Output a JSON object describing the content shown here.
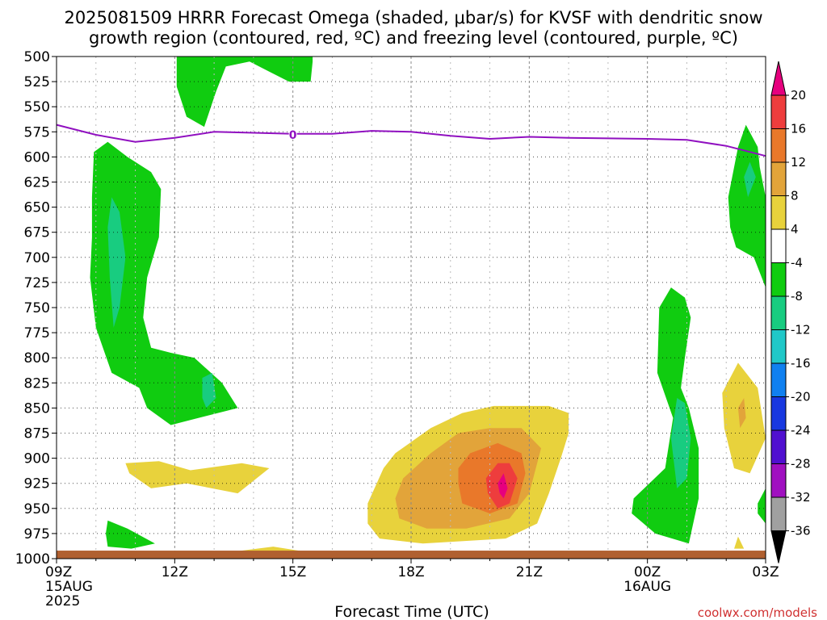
{
  "chart_data": {
    "type": "heatmap",
    "title_line1": "2025081509 HRRR Forecast Omega (shaded, μbar/s) for KVSF with dendritic snow",
    "title_line2": "growth region (contoured, red, ºC) and freezing level (contoured, purple, ºC)",
    "xlabel": "Forecast Time (UTC)",
    "credit": "coolwx.com/models",
    "x_range_hours": [
      0,
      18
    ],
    "y_range_hpa": [
      500,
      1000
    ],
    "y_ticks": [
      500,
      525,
      550,
      575,
      600,
      625,
      650,
      675,
      700,
      725,
      750,
      775,
      800,
      825,
      850,
      875,
      900,
      925,
      950,
      975,
      1000
    ],
    "x_ticks": [
      {
        "hour": 0,
        "label": "09Z",
        "date": "15AUG",
        "year": "2025"
      },
      {
        "hour": 3,
        "label": "12Z"
      },
      {
        "hour": 6,
        "label": "15Z"
      },
      {
        "hour": 9,
        "label": "18Z"
      },
      {
        "hour": 12,
        "label": "21Z"
      },
      {
        "hour": 15,
        "label": "00Z",
        "date": "16AUG"
      },
      {
        "hour": 18,
        "label": "03Z"
      }
    ],
    "grid": true,
    "freezing_level": {
      "label": "0",
      "points": [
        [
          0,
          568
        ],
        [
          1,
          578
        ],
        [
          2,
          585
        ],
        [
          3,
          581
        ],
        [
          4,
          575
        ],
        [
          6,
          577
        ],
        [
          7,
          577
        ],
        [
          8,
          574
        ],
        [
          9,
          575
        ],
        [
          10,
          579
        ],
        [
          11,
          582
        ],
        [
          12,
          580
        ],
        [
          13,
          581
        ],
        [
          15,
          582
        ],
        [
          16,
          583
        ],
        [
          17,
          589
        ],
        [
          18,
          599
        ]
      ]
    },
    "colorbar": {
      "labels": [
        "20",
        "16",
        "12",
        "8",
        "4",
        "-4",
        "-8",
        "-12",
        "-16",
        "-20",
        "-24",
        "-28",
        "-32",
        "-36"
      ],
      "colors": [
        "#e6007e",
        "#ee3d3d",
        "#e9782a",
        "#e2a43a",
        "#e8d23c",
        "#ffffff",
        "#10cc10",
        "#18cc80",
        "#20c8c8",
        "#1080f0",
        "#1838e0",
        "#5010d0",
        "#a010c0",
        "#a0a0a0",
        "#000000"
      ]
    },
    "shaded_regions": [
      {
        "name": "green-top-12z-15z",
        "value": -6,
        "points": [
          [
            3.05,
            500
          ],
          [
            3.05,
            530
          ],
          [
            3.3,
            560
          ],
          [
            3.75,
            570
          ],
          [
            4.05,
            535
          ],
          [
            4.3,
            510
          ],
          [
            4.9,
            505
          ],
          [
            5.4,
            515
          ],
          [
            5.9,
            525
          ],
          [
            6.45,
            525
          ],
          [
            6.5,
            505
          ],
          [
            6.5,
            500
          ]
        ]
      },
      {
        "name": "green-left-column",
        "value": -6,
        "points": [
          [
            0.95,
            595
          ],
          [
            1.3,
            585
          ],
          [
            1.8,
            600
          ],
          [
            2.4,
            615
          ],
          [
            2.65,
            632
          ],
          [
            2.6,
            680
          ],
          [
            2.3,
            720
          ],
          [
            2.2,
            760
          ],
          [
            2.4,
            790
          ],
          [
            2.9,
            795
          ],
          [
            3.5,
            800
          ],
          [
            4.2,
            825
          ],
          [
            4.6,
            850
          ],
          [
            3.6,
            860
          ],
          [
            2.9,
            867
          ],
          [
            2.3,
            850
          ],
          [
            2.1,
            830
          ],
          [
            1.4,
            815
          ],
          [
            1.0,
            770
          ],
          [
            0.85,
            720
          ],
          [
            0.9,
            680
          ],
          [
            0.9,
            640
          ]
        ]
      },
      {
        "name": "teal-left-column",
        "value": -10,
        "points": [
          [
            1.4,
            640
          ],
          [
            1.6,
            655
          ],
          [
            1.75,
            700
          ],
          [
            1.6,
            750
          ],
          [
            1.45,
            770
          ],
          [
            1.35,
            720
          ],
          [
            1.3,
            670
          ]
        ]
      },
      {
        "name": "teal-12z-850",
        "value": -10,
        "points": [
          [
            3.7,
            820
          ],
          [
            3.95,
            815
          ],
          [
            4.05,
            840
          ],
          [
            3.8,
            850
          ],
          [
            3.7,
            840
          ]
        ]
      },
      {
        "name": "green-left-bottom",
        "value": -6,
        "points": [
          [
            1.3,
            962
          ],
          [
            1.8,
            970
          ],
          [
            2.5,
            985
          ],
          [
            1.9,
            990
          ],
          [
            1.3,
            988
          ],
          [
            1.25,
            975
          ]
        ]
      },
      {
        "name": "green-right-top",
        "value": -6,
        "points": [
          [
            17.05,
            640
          ],
          [
            17.3,
            590
          ],
          [
            17.5,
            568
          ],
          [
            17.8,
            590
          ],
          [
            17.85,
            610
          ],
          [
            18,
            640
          ],
          [
            18,
            700
          ],
          [
            18,
            730
          ],
          [
            17.7,
            700
          ],
          [
            17.25,
            690
          ],
          [
            17.1,
            670
          ]
        ]
      },
      {
        "name": "teal-right-top",
        "value": -10,
        "points": [
          [
            17.45,
            620
          ],
          [
            17.6,
            605
          ],
          [
            17.75,
            620
          ],
          [
            17.55,
            640
          ]
        ]
      },
      {
        "name": "green-right-bottom",
        "value": -6,
        "points": [
          [
            14.65,
            940
          ],
          [
            15.05,
            925
          ],
          [
            15.45,
            910
          ],
          [
            15.65,
            860
          ],
          [
            15.25,
            815
          ],
          [
            15.3,
            750
          ],
          [
            15.6,
            730
          ],
          [
            15.95,
            740
          ],
          [
            16.1,
            760
          ],
          [
            15.95,
            800
          ],
          [
            15.85,
            830
          ],
          [
            16.05,
            850
          ],
          [
            16.3,
            890
          ],
          [
            16.3,
            940
          ],
          [
            16.05,
            985
          ],
          [
            15.2,
            975
          ],
          [
            14.6,
            955
          ]
        ]
      },
      {
        "name": "teal-right-bottom",
        "value": -10,
        "points": [
          [
            15.6,
            880
          ],
          [
            15.75,
            840
          ],
          [
            15.95,
            845
          ],
          [
            16.1,
            880
          ],
          [
            16.0,
            920
          ],
          [
            15.75,
            930
          ]
        ]
      },
      {
        "name": "green-right-edge-bottom",
        "value": -6,
        "points": [
          [
            17.8,
            945
          ],
          [
            18,
            930
          ],
          [
            18,
            965
          ],
          [
            17.8,
            955
          ]
        ]
      },
      {
        "name": "yellow-left-900",
        "value": 5,
        "points": [
          [
            1.75,
            905
          ],
          [
            2.6,
            903
          ],
          [
            3.4,
            912
          ],
          [
            4.7,
            905
          ],
          [
            5.4,
            910
          ],
          [
            4.6,
            935
          ],
          [
            3.3,
            925
          ],
          [
            2.4,
            930
          ],
          [
            1.85,
            915
          ]
        ]
      },
      {
        "name": "yellow-right-850",
        "value": 5,
        "points": [
          [
            16.9,
            835
          ],
          [
            17.3,
            805
          ],
          [
            17.8,
            830
          ],
          [
            18,
            880
          ],
          [
            17.6,
            915
          ],
          [
            17.2,
            910
          ],
          [
            16.95,
            870
          ]
        ]
      },
      {
        "name": "orange-right-850",
        "value": 9,
        "points": [
          [
            17.3,
            850
          ],
          [
            17.45,
            840
          ],
          [
            17.5,
            860
          ],
          [
            17.35,
            870
          ]
        ]
      },
      {
        "name": "yellow-right-small",
        "value": 5,
        "points": [
          [
            17.2,
            990
          ],
          [
            17.3,
            978
          ],
          [
            17.45,
            990
          ]
        ]
      },
      {
        "name": "yellow-bottom-strip",
        "value": 5,
        "points": [
          [
            4.1,
            995
          ],
          [
            5.5,
            988
          ],
          [
            6.3,
            993
          ],
          [
            5.5,
            995
          ]
        ]
      },
      {
        "name": "yellow-main-blob",
        "value": 5,
        "points": [
          [
            7.9,
            945
          ],
          [
            8.3,
            910
          ],
          [
            8.6,
            895
          ],
          [
            9.5,
            870
          ],
          [
            10.3,
            855
          ],
          [
            11.1,
            848
          ],
          [
            12.5,
            848
          ],
          [
            13.0,
            855
          ],
          [
            13.0,
            875
          ],
          [
            12.8,
            900
          ],
          [
            12.5,
            935
          ],
          [
            12.2,
            965
          ],
          [
            11.4,
            980
          ],
          [
            9.3,
            985
          ],
          [
            8.2,
            980
          ],
          [
            7.9,
            965
          ]
        ]
      },
      {
        "name": "orange-light-main",
        "value": 9,
        "points": [
          [
            8.6,
            940
          ],
          [
            8.8,
            920
          ],
          [
            9.5,
            895
          ],
          [
            10.2,
            875
          ],
          [
            11.0,
            870
          ],
          [
            11.8,
            870
          ],
          [
            12.3,
            890
          ],
          [
            12.0,
            935
          ],
          [
            11.5,
            960
          ],
          [
            10.4,
            970
          ],
          [
            9.4,
            970
          ],
          [
            8.7,
            960
          ]
        ]
      },
      {
        "name": "orange-main",
        "value": 13,
        "points": [
          [
            10.2,
            910
          ],
          [
            10.5,
            895
          ],
          [
            11.2,
            885
          ],
          [
            11.8,
            895
          ],
          [
            11.9,
            915
          ],
          [
            11.7,
            945
          ],
          [
            11.0,
            955
          ],
          [
            10.3,
            945
          ],
          [
            10.2,
            925
          ]
        ]
      },
      {
        "name": "red-main",
        "value": 17,
        "points": [
          [
            10.9,
            920
          ],
          [
            11.2,
            905
          ],
          [
            11.5,
            905
          ],
          [
            11.7,
            920
          ],
          [
            11.5,
            945
          ],
          [
            11.2,
            950
          ],
          [
            10.95,
            935
          ]
        ]
      },
      {
        "name": "magenta-main",
        "value": 21,
        "points": [
          [
            11.2,
            925
          ],
          [
            11.35,
            915
          ],
          [
            11.45,
            930
          ],
          [
            11.35,
            940
          ],
          [
            11.25,
            935
          ]
        ]
      }
    ],
    "ground": {
      "color": "#b06030",
      "top_hpa": 992
    }
  }
}
